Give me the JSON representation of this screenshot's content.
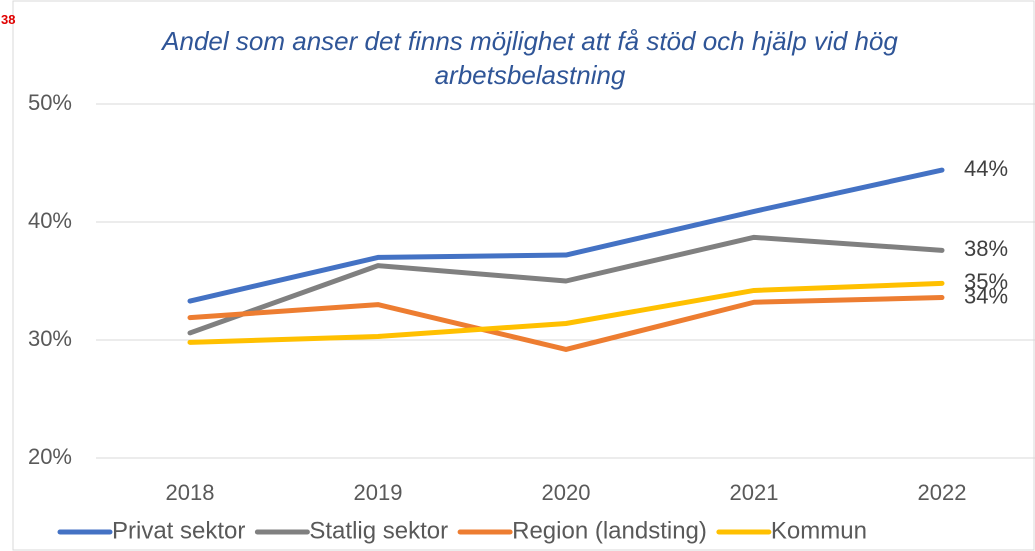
{
  "page_number": "38",
  "chart_data": {
    "type": "line",
    "title": "Andel som anser det finns möjlighet att få stöd och hjälp vid hög arbetsbelastning",
    "categories": [
      "2018",
      "2019",
      "2020",
      "2021",
      "2022"
    ],
    "ylim": [
      20,
      50
    ],
    "yticks": [
      {
        "value": 20,
        "label": "20%"
      },
      {
        "value": 30,
        "label": "30%"
      },
      {
        "value": 40,
        "label": "40%"
      },
      {
        "value": 50,
        "label": "50%"
      }
    ],
    "grid": true,
    "legend": "bottom",
    "series": [
      {
        "name": "Privat sektor",
        "color": "#4472c4",
        "values": [
          33.3,
          37.0,
          37.2,
          40.9,
          44.4
        ],
        "value_labels": [
          null,
          null,
          null,
          null,
          "44%"
        ]
      },
      {
        "name": "Statlig sektor",
        "color": "#808080",
        "values": [
          30.6,
          36.3,
          35.0,
          38.7,
          37.6
        ],
        "value_labels": [
          null,
          null,
          null,
          null,
          "38%"
        ]
      },
      {
        "name": "Region (landsting)",
        "color": "#ed7d31",
        "values": [
          31.9,
          33.0,
          29.2,
          33.2,
          33.6
        ],
        "value_labels": [
          null,
          null,
          null,
          null,
          "34%"
        ]
      },
      {
        "name": "Kommun",
        "color": "#ffc000",
        "values": [
          29.8,
          30.3,
          31.4,
          34.2,
          34.8
        ],
        "value_labels": [
          null,
          null,
          null,
          null,
          "35%"
        ]
      }
    ]
  }
}
